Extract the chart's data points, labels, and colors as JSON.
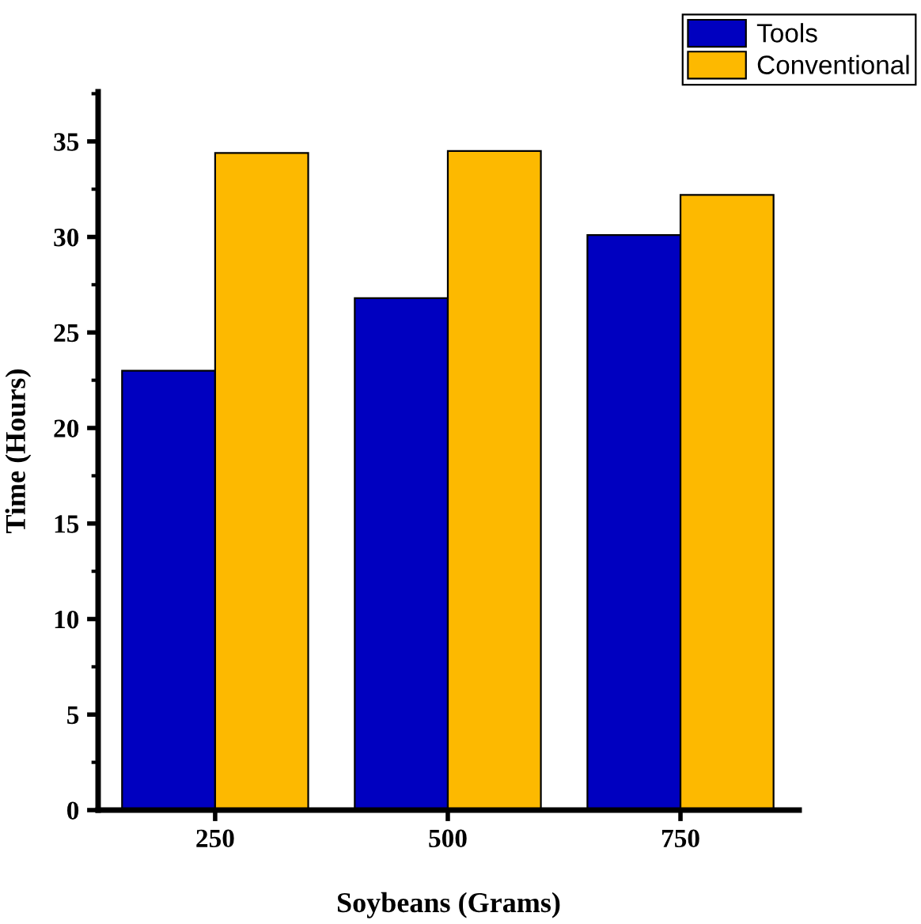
{
  "chart_data": {
    "type": "bar",
    "xlabel": "Soybeans (Grams)",
    "ylabel": "Time (Hours)",
    "categories": [
      "250",
      "500",
      "750"
    ],
    "series": [
      {
        "name": "Tools",
        "color": "#0000c0",
        "values": [
          23.0,
          26.8,
          30.1
        ]
      },
      {
        "name": "Conventional",
        "color": "#fdb900",
        "values": [
          34.4,
          34.5,
          32.2
        ]
      }
    ],
    "ylim": [
      0,
      37.6
    ],
    "yticks": [
      0,
      5,
      10,
      15,
      20,
      25,
      30,
      35
    ],
    "grid": false,
    "legend": "top right"
  }
}
